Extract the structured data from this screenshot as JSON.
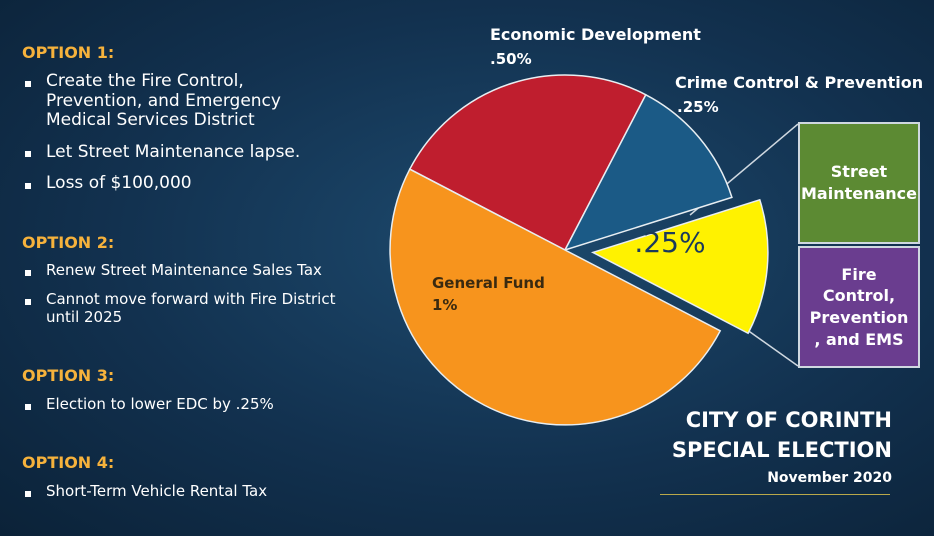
{
  "options": [
    {
      "heading": "OPTION 1:",
      "items": [
        "Create the Fire Control, Prevention, and Emergency Medical Services District",
        "Let Street Maintenance lapse.",
        "Loss of $100,000"
      ]
    },
    {
      "heading": "OPTION 2:",
      "items": [
        "Renew Street Maintenance Sales Tax",
        "Cannot move forward with Fire District until 2025"
      ]
    },
    {
      "heading": "OPTION 3:",
      "items": [
        "Election to lower EDC by .25%"
      ]
    },
    {
      "heading": "OPTION 4:",
      "items": [
        "Short-Term Vehicle Rental Tax"
      ]
    }
  ],
  "boxes": [
    "Street Maintenance",
    "Fire Control, Prevention , and EMS"
  ],
  "footer": {
    "title": [
      "CITY OF CORINTH",
      "SPECIAL ELECTION"
    ],
    "date": "November 2020"
  },
  "chart_data": {
    "type": "pie",
    "categories": [
      "Economic Development",
      "Crime Control & Prevention",
      null,
      "General Fund"
    ],
    "values": [
      0.5,
      0.25,
      0.25,
      1
    ],
    "value_labels": [
      ".50%",
      ".25%",
      ".25%",
      "1%"
    ],
    "colors": [
      "#bf1e2e",
      "#1b5a86",
      "#fff200",
      "#f7941d"
    ],
    "exploded": [
      false,
      false,
      true,
      false
    ]
  }
}
